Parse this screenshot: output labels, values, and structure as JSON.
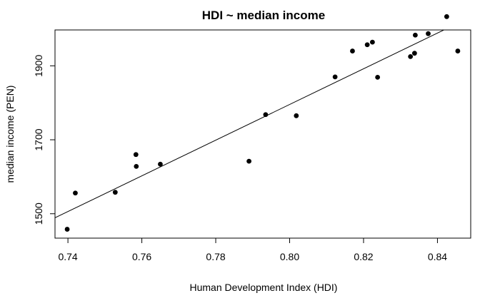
{
  "chart_data": {
    "type": "scatter",
    "title": "HDI ~ median income",
    "xlabel": "Human Development Index (HDI)",
    "ylabel": "median income (PEN)",
    "xlim": [
      0.7365,
      0.849
    ],
    "ylim": [
      1434,
      1997
    ],
    "xticks": [
      0.74,
      0.76,
      0.78,
      0.8,
      0.82,
      0.84
    ],
    "xtick_labels": [
      "0.74",
      "0.76",
      "0.78",
      "0.80",
      "0.82",
      "0.84"
    ],
    "yticks": [
      1500,
      1700,
      1900
    ],
    "ytick_labels": [
      "1500",
      "1700",
      "1900"
    ],
    "grid": false,
    "points": [
      {
        "x": 0.7398,
        "y": 1458
      },
      {
        "x": 0.742,
        "y": 1556
      },
      {
        "x": 0.7528,
        "y": 1558
      },
      {
        "x": 0.7584,
        "y": 1660
      },
      {
        "x": 0.7585,
        "y": 1628
      },
      {
        "x": 0.765,
        "y": 1634
      },
      {
        "x": 0.789,
        "y": 1642
      },
      {
        "x": 0.7935,
        "y": 1768
      },
      {
        "x": 0.8018,
        "y": 1765
      },
      {
        "x": 0.8123,
        "y": 1870
      },
      {
        "x": 0.817,
        "y": 1940
      },
      {
        "x": 0.821,
        "y": 1957
      },
      {
        "x": 0.8224,
        "y": 1964
      },
      {
        "x": 0.8238,
        "y": 1869
      },
      {
        "x": 0.8327,
        "y": 1925
      },
      {
        "x": 0.8338,
        "y": 1934
      },
      {
        "x": 0.834,
        "y": 1983
      },
      {
        "x": 0.8375,
        "y": 1987
      },
      {
        "x": 0.8425,
        "y": 2033
      },
      {
        "x": 0.8455,
        "y": 1940
      }
    ],
    "fit_line": {
      "x": [
        0.7365,
        0.849
      ],
      "y": [
        1489,
        2032
      ]
    },
    "colors": {
      "point": "#000000",
      "line": "#000000",
      "frame": "#000000"
    }
  }
}
